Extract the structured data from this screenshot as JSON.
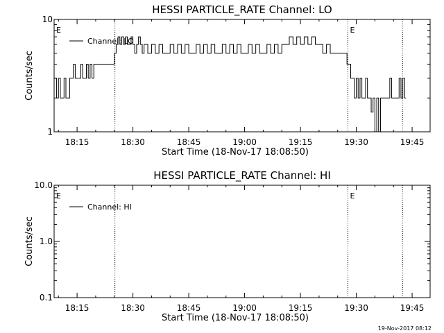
{
  "footer": {
    "timestamp": "19-Nov-2017 08:12"
  },
  "chart_data": [
    {
      "type": "line",
      "title": "HESSI PARTICLE_RATE Channel: LO",
      "xlabel": "Start Time (18-Nov-17 18:08:50)",
      "ylabel": "Counts/sec",
      "yscale": "log",
      "ylim": [
        1,
        10
      ],
      "ytick_values": [
        1,
        10
      ],
      "ytick_labels": [
        "1",
        "10"
      ],
      "xlim": [
        "18:08:50",
        "19:49:50"
      ],
      "xtick_labels": [
        "18:15",
        "18:30",
        "18:45",
        "19:00",
        "19:15",
        "19:30",
        "19:45"
      ],
      "vlines": [
        "18:25:10",
        "19:27:45",
        "19:42:25"
      ],
      "markers": [
        {
          "label": "E",
          "at": "18:08:50"
        },
        {
          "label": "E",
          "at": "19:27:45"
        }
      ],
      "legend": {
        "placement": "top-left"
      },
      "series": [
        {
          "name": "Channel: LO",
          "x": [
            "18:08:50",
            "18:09:30",
            "18:10:00",
            "18:10:30",
            "18:11:00",
            "18:11:30",
            "18:12:00",
            "18:12:30",
            "18:13:00",
            "18:13:30",
            "18:14:00",
            "18:14:30",
            "18:15:00",
            "18:15:30",
            "18:16:00",
            "18:16:30",
            "18:17:00",
            "18:17:30",
            "18:18:00",
            "18:18:30",
            "18:19:00",
            "18:19:30",
            "18:20:00",
            "18:21:00",
            "18:22:00",
            "18:23:00",
            "18:24:00",
            "18:25:00",
            "18:25:30",
            "18:26:00",
            "18:26:30",
            "18:27:00",
            "18:27:30",
            "18:28:00",
            "18:28:30",
            "18:29:00",
            "18:29:30",
            "18:30:00",
            "18:30:30",
            "18:31:00",
            "18:31:30",
            "18:32:00",
            "18:32:30",
            "18:33:00",
            "18:34:00",
            "18:35:00",
            "18:36:00",
            "18:37:00",
            "18:38:00",
            "18:39:00",
            "18:40:00",
            "18:41:00",
            "18:42:00",
            "18:43:00",
            "18:44:00",
            "18:45:00",
            "18:46:00",
            "18:47:00",
            "18:48:00",
            "18:49:00",
            "18:50:00",
            "18:51:00",
            "18:52:00",
            "18:53:00",
            "18:54:00",
            "18:55:00",
            "18:56:00",
            "18:57:00",
            "18:58:00",
            "18:59:00",
            "19:00:00",
            "19:01:00",
            "19:02:00",
            "19:03:00",
            "19:04:00",
            "19:05:00",
            "19:06:00",
            "19:07:00",
            "19:08:00",
            "19:09:00",
            "19:10:00",
            "19:11:00",
            "19:12:00",
            "19:13:00",
            "19:14:00",
            "19:15:00",
            "19:16:00",
            "19:17:00",
            "19:18:00",
            "19:19:00",
            "19:20:00",
            "19:21:00",
            "19:22:00",
            "19:23:00",
            "19:24:00",
            "19:25:00",
            "19:26:00",
            "19:27:00",
            "19:27:30",
            "19:28:00",
            "19:28:30",
            "19:29:00",
            "19:29:30",
            "19:30:00",
            "19:30:30",
            "19:31:00",
            "19:31:30",
            "19:32:00",
            "19:32:30",
            "19:33:00",
            "19:33:30",
            "19:34:00",
            "19:34:30",
            "19:35:00",
            "19:35:30",
            "19:36:00",
            "19:36:30",
            "19:37:00",
            "19:37:30",
            "19:38:00",
            "19:38:30",
            "19:39:00",
            "19:39:30",
            "19:40:00",
            "19:40:30",
            "19:41:00",
            "19:41:30",
            "19:42:00",
            "19:42:30",
            "19:43:00"
          ],
          "values": [
            3,
            2,
            3,
            2,
            2,
            3,
            2,
            2,
            3,
            3,
            4,
            3,
            3,
            3,
            4,
            3,
            3,
            4,
            3,
            4,
            3,
            4,
            4,
            4,
            4,
            4,
            4,
            5,
            6,
            7,
            6,
            7,
            6,
            7,
            6,
            6,
            7,
            6,
            5,
            6,
            7,
            6,
            5,
            6,
            5,
            6,
            5,
            6,
            5,
            5,
            6,
            5,
            6,
            5,
            6,
            5,
            5,
            6,
            5,
            6,
            5,
            6,
            5,
            5,
            6,
            5,
            6,
            5,
            6,
            5,
            5,
            6,
            5,
            6,
            5,
            5,
            6,
            5,
            6,
            5,
            6,
            6,
            7,
            6,
            7,
            6,
            7,
            6,
            7,
            6,
            6,
            5,
            6,
            5,
            5,
            5,
            5,
            5,
            4,
            4,
            3,
            3,
            2,
            3,
            2,
            3,
            2,
            2,
            3,
            2,
            2,
            1.5,
            2,
            1,
            2,
            1,
            2,
            2,
            2,
            2,
            2,
            3,
            2,
            2,
            2,
            2,
            3,
            2,
            3,
            2
          ]
        }
      ]
    },
    {
      "type": "line",
      "title": "HESSI PARTICLE_RATE Channel: HI",
      "xlabel": "Start Time (18-Nov-17 18:08:50)",
      "ylabel": "Counts/sec",
      "yscale": "log",
      "ylim": [
        0.1,
        10
      ],
      "ytick_values": [
        0.1,
        1,
        10
      ],
      "ytick_labels": [
        "0.1",
        "1.0",
        "10.0"
      ],
      "xlim": [
        "18:08:50",
        "19:49:50"
      ],
      "xtick_labels": [
        "18:15",
        "18:30",
        "18:45",
        "19:00",
        "19:15",
        "19:30",
        "19:45"
      ],
      "vlines": [
        "18:25:10",
        "19:27:45",
        "19:42:25"
      ],
      "markers": [
        {
          "label": "E",
          "at": "18:08:50"
        },
        {
          "label": "E",
          "at": "19:27:45"
        }
      ],
      "legend": {
        "placement": "top-left"
      },
      "series": [
        {
          "name": "Channel: HI",
          "x": [],
          "values": []
        }
      ]
    }
  ]
}
